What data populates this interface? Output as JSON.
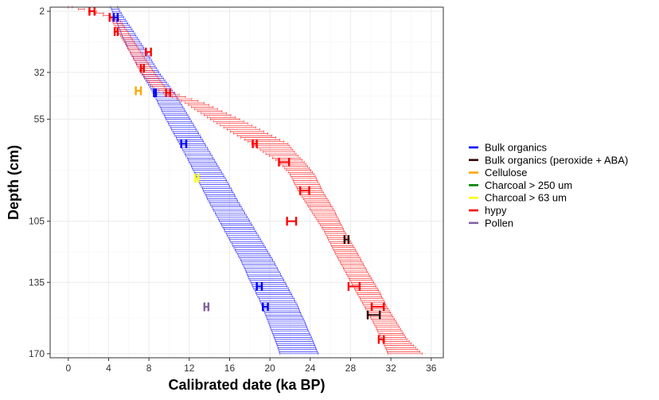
{
  "chart_data": {
    "type": "scatter",
    "xlabel": "Calibrated date (ka BP)",
    "ylabel": "Depth (cm)",
    "xlim": [
      -1.8,
      37.2
    ],
    "ylim": [
      0,
      172
    ],
    "x_ticks": [
      0,
      4,
      8,
      12,
      16,
      20,
      24,
      28,
      32,
      36
    ],
    "y_ticks": [
      2,
      32,
      55,
      105,
      135,
      170
    ],
    "y_reversed": true,
    "grid": true,
    "legend_position": "right",
    "legend": [
      {
        "name": "Bulk organics",
        "color": "#0000ff"
      },
      {
        "name": "Bulk organics (peroxide + ABA)",
        "color": "#330000"
      },
      {
        "name": "Cellulose",
        "color": "#ffa500"
      },
      {
        "name": "Charcoal > 250 um",
        "color": "#008000"
      },
      {
        "name": "Charcoal > 63 um",
        "color": "#ffff00"
      },
      {
        "name": "hypy",
        "color": "#ff0000"
      },
      {
        "name": "Pollen",
        "color": "#8064a2"
      }
    ],
    "dates": [
      {
        "series": "hypy",
        "depth": 2,
        "min": 2.1,
        "max": 2.6
      },
      {
        "series": "hypy",
        "depth": 5,
        "min": 4.1,
        "max": 4.5
      },
      {
        "series": "Bulk organics",
        "depth": 5,
        "min": 4.5,
        "max": 4.9
      },
      {
        "series": "hypy",
        "depth": 12,
        "min": 4.6,
        "max": 4.9
      },
      {
        "series": "hypy",
        "depth": 22,
        "min": 7.7,
        "max": 8.2
      },
      {
        "series": "hypy",
        "depth": 30,
        "min": 7.2,
        "max": 7.5
      },
      {
        "series": "Cellulose",
        "depth": 41,
        "min": 6.7,
        "max": 7.2
      },
      {
        "series": "Bulk organics",
        "depth": 42,
        "min": 8.5,
        "max": 8.7
      },
      {
        "series": "hypy",
        "depth": 42,
        "min": 9.7,
        "max": 10.1
      },
      {
        "series": "Bulk organics",
        "depth": 67,
        "min": 11.2,
        "max": 11.7
      },
      {
        "series": "hypy",
        "depth": 67,
        "min": 18.3,
        "max": 18.7
      },
      {
        "series": "hypy",
        "depth": 76,
        "min": 20.9,
        "max": 21.9
      },
      {
        "series": "Charcoal > 63 um",
        "depth": 84,
        "min": 12.6,
        "max": 12.9
      },
      {
        "series": "hypy",
        "depth": 90,
        "min": 23.0,
        "max": 23.9
      },
      {
        "series": "hypy",
        "depth": 105,
        "min": 21.7,
        "max": 22.6
      },
      {
        "series": "Bulk organics (peroxide + ABA)",
        "depth": 114,
        "min": 27.4,
        "max": 27.8
      },
      {
        "series": "Bulk organics",
        "depth": 137,
        "min": 18.7,
        "max": 19.2
      },
      {
        "series": "hypy",
        "depth": 137,
        "min": 27.8,
        "max": 28.9
      },
      {
        "series": "Bulk organics",
        "depth": 147,
        "min": 19.3,
        "max": 19.8
      },
      {
        "series": "hypy",
        "depth": 147,
        "min": 30.1,
        "max": 31.3
      },
      {
        "series": "Pollen",
        "depth": 147,
        "min": 13.5,
        "max": 13.9
      },
      {
        "series": "Bulk organics (peroxide + ABA)",
        "depth": 151,
        "min": 29.7,
        "max": 30.9
      },
      {
        "series": "hypy",
        "depth": 163,
        "min": 30.8,
        "max": 31.3
      }
    ],
    "age_models": [
      {
        "series": "Bulk organics",
        "color": "#0000ff",
        "depth": [
          0,
          5,
          10,
          20,
          32,
          40,
          45,
          55,
          65,
          75,
          85,
          95,
          105,
          115,
          125,
          135,
          145,
          155,
          163,
          170
        ],
        "min": [
          4.2,
          4.6,
          5.0,
          5.9,
          7.2,
          8.2,
          8.7,
          9.7,
          10.8,
          11.9,
          12.9,
          13.9,
          15.0,
          16.1,
          17.2,
          18.1,
          19.1,
          19.9,
          20.5,
          21.0
        ],
        "max": [
          4.9,
          5.5,
          6.2,
          7.5,
          9.0,
          10.2,
          10.9,
          12.1,
          13.3,
          14.5,
          15.7,
          16.8,
          18.0,
          19.2,
          20.4,
          21.5,
          22.6,
          23.5,
          24.2,
          24.8
        ]
      },
      {
        "series": "hypy",
        "color": "#ff0000",
        "depth": [
          0,
          2,
          5,
          10,
          20,
          32,
          40,
          43,
          47,
          55,
          62,
          67,
          72,
          76,
          82,
          90,
          100,
          110,
          120,
          130,
          140,
          147,
          155,
          163,
          170
        ],
        "min": [
          0.0,
          2.0,
          4.2,
          4.7,
          5.9,
          7.2,
          8.5,
          9.9,
          11.6,
          14.1,
          16.4,
          18.2,
          19.6,
          20.9,
          22.0,
          22.8,
          24.1,
          25.4,
          26.4,
          27.5,
          28.6,
          29.4,
          30.3,
          31.1,
          31.7
        ],
        "max": [
          0.4,
          2.8,
          4.9,
          5.6,
          6.9,
          8.5,
          9.7,
          11.0,
          13.5,
          17.0,
          19.8,
          21.8,
          22.6,
          23.4,
          24.4,
          25.2,
          26.4,
          27.4,
          28.6,
          29.7,
          30.9,
          31.6,
          32.6,
          33.6,
          35.1
        ]
      }
    ]
  }
}
